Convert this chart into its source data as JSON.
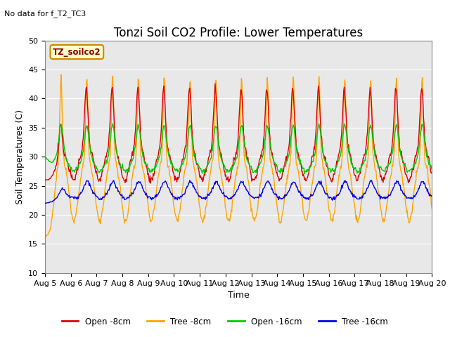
{
  "title": "Tonzi Soil CO2 Profile: Lower Temperatures",
  "subtitle": "No data for f_T2_TC3",
  "xlabel": "Time",
  "ylabel": "Soil Temperatures (C)",
  "ylim": [
    10,
    50
  ],
  "yticks": [
    10,
    15,
    20,
    25,
    30,
    35,
    40,
    45,
    50
  ],
  "x_tick_labels": [
    "Aug 5",
    "Aug 6",
    "Aug 7",
    "Aug 8",
    "Aug 9",
    "Aug 10",
    "Aug 11",
    "Aug 12",
    "Aug 13",
    "Aug 14",
    "Aug 15",
    "Aug 16",
    "Aug 17",
    "Aug 18",
    "Aug 19",
    "Aug 20"
  ],
  "colors": {
    "open_8cm": "#dd0000",
    "tree_8cm": "#ffa500",
    "open_16cm": "#00cc00",
    "tree_16cm": "#0000ee"
  },
  "legend_labels": [
    "Open -8cm",
    "Tree -8cm",
    "Open -16cm",
    "Tree -16cm"
  ],
  "inset_label": "TZ_soilco2",
  "plot_bg_color": "#e8e8e8",
  "title_fontsize": 12,
  "label_fontsize": 9,
  "tick_fontsize": 8
}
